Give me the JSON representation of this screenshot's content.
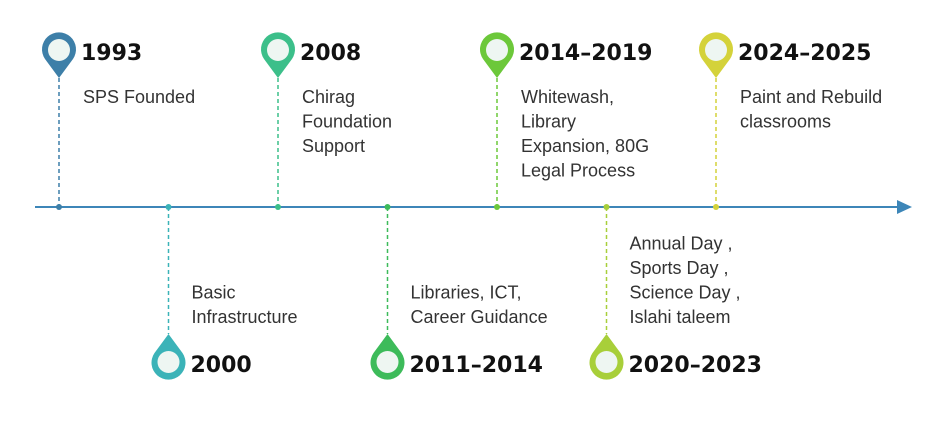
{
  "events": [
    {
      "year": "1993",
      "lines": [
        "SPS Founded"
      ],
      "color": "#3d7fa8"
    },
    {
      "year": "2000",
      "lines": [
        "Basic",
        "Infrastructure"
      ],
      "color": "#3bb3b8"
    },
    {
      "year": "2008",
      "lines": [
        "Chirag",
        "Foundation",
        "Support"
      ],
      "color": "#3cbf8a"
    },
    {
      "year": "2011–2014",
      "lines": [
        "Libraries, ICT,",
        "Career Guidance"
      ],
      "color": "#3dbb5a"
    },
    {
      "year": "2014–2019",
      "lines": [
        "Whitewash,",
        "Library",
        "Expansion, 80G",
        "Legal Process"
      ],
      "color": "#6cc83a"
    },
    {
      "year": "2020–2023",
      "lines": [
        "Annual Day ,",
        "Sports Day ,",
        "Science Day ,",
        "Islahi taleem"
      ],
      "color": "#a8cf3a"
    },
    {
      "year": "2024–2025",
      "lines": [
        "Paint and Rebuild",
        "classrooms"
      ],
      "color": "#d4d23a"
    }
  ]
}
